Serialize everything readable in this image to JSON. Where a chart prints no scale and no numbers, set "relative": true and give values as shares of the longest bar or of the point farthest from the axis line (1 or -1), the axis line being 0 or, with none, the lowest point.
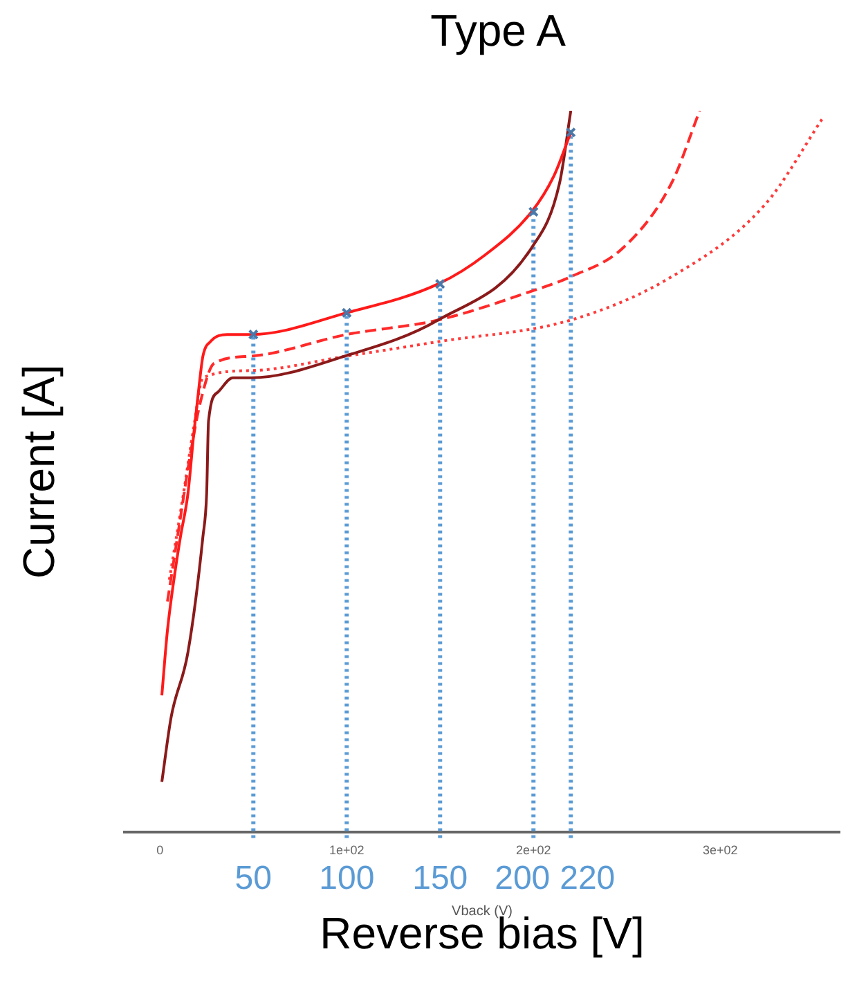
{
  "chart_data": {
    "type": "line",
    "title": "Type A",
    "xlabel": "Reverse bias [V]",
    "ylabel": "Current [A]",
    "relative": true,
    "grid": false,
    "legend": false,
    "tick_labels": "x",
    "xlim": [
      -19,
      364
    ],
    "xticks": [
      0,
      {
        "value": 100,
        "label": "1e+02"
      },
      {
        "value": 200,
        "label": "2e+02"
      },
      {
        "value": 300,
        "label": "3e+02"
      }
    ],
    "series": [
      {
        "color": "#ff1a1a",
        "line_style": "solid",
        "x": [
          1,
          4,
          8,
          11,
          15,
          18,
          21,
          23,
          27,
          36,
          49,
          100,
          149,
          174,
          199,
          211,
          220
        ],
        "values": [
          0.19,
          0.28,
          0.36,
          0.41,
          0.47,
          0.55,
          0.62,
          0.66,
          0.68,
          0.69,
          0.69,
          0.72,
          0.76,
          0.8,
          0.86,
          0.91,
          0.97
        ]
      },
      {
        "color": "#8b1a1a",
        "line_style": "solid",
        "x": [
          1,
          6,
          15,
          23,
          25,
          26,
          31,
          39,
          49,
          99,
          149,
          199,
          214,
          220
        ],
        "values": [
          0.07,
          0.16,
          0.25,
          0.41,
          0.47,
          0.57,
          0.61,
          0.63,
          0.63,
          0.66,
          0.71,
          0.81,
          0.9,
          1.0
        ]
      },
      {
        "color": "#ff2a2a",
        "line_style": "dashed",
        "x": [
          4,
          10,
          16,
          22,
          29,
          49,
          100,
          149,
          199,
          220,
          248,
          274,
          289
        ],
        "values": [
          0.32,
          0.42,
          0.52,
          0.6,
          0.65,
          0.66,
          0.69,
          0.71,
          0.75,
          0.77,
          0.81,
          0.9,
          1.0
        ]
      },
      {
        "color": "#ff3a3a",
        "line_style": "dotted",
        "x": [
          5,
          12,
          18,
          23,
          49,
          100,
          149,
          220,
          274,
          324,
          355
        ],
        "values": [
          0.35,
          0.46,
          0.56,
          0.63,
          0.64,
          0.66,
          0.68,
          0.71,
          0.77,
          0.87,
          0.99
        ]
      },
      {
        "type": "scatter",
        "marker": "crossRot",
        "color": "#4a78a8",
        "x": [
          50,
          100,
          150,
          200,
          220
        ],
        "values": [
          0.69,
          0.72,
          0.76,
          0.86,
          0.97
        ]
      }
    ],
    "ref_lines": [
      {
        "axis": "x",
        "value": 50,
        "label": "50",
        "color": "#5b9bd5",
        "line_style": "dotted"
      },
      {
        "axis": "x",
        "value": 100,
        "label": "100",
        "color": "#5b9bd5",
        "line_style": "dotted"
      },
      {
        "axis": "x",
        "value": 150,
        "label": "150",
        "color": "#5b9bd5",
        "line_style": "dotted"
      },
      {
        "axis": "x",
        "value": 200,
        "label": "200",
        "color": "#5b9bd5",
        "line_style": "dotted"
      },
      {
        "axis": "x",
        "value": 220,
        "label": "220",
        "color": "#5b9bd5",
        "line_style": "dotted"
      }
    ],
    "annotations": [
      "Vback (V)"
    ]
  }
}
